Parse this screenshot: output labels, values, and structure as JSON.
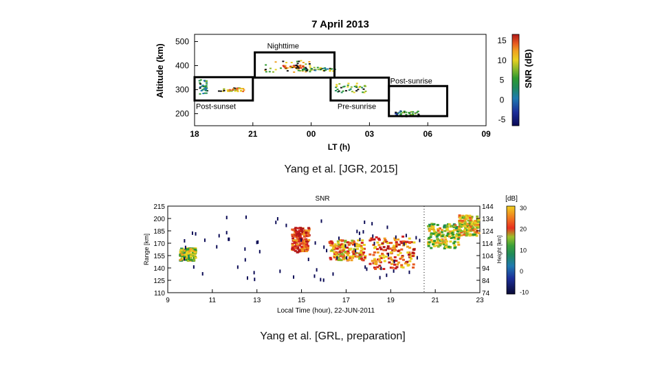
{
  "slide": {
    "caption_top": "Yang et al. [JGR, 2015]",
    "caption_bottom": "Yang et al. [GRL, preparation]"
  },
  "colors": {
    "scale": [
      "#0a0a55",
      "#1c2f9a",
      "#1f7ab0",
      "#1f8a5a",
      "#2e9a2e",
      "#8ab82a",
      "#e8d020",
      "#f0a020",
      "#e85a20",
      "#d02020",
      "#b01818"
    ]
  },
  "chart_data": [
    {
      "type": "scatter",
      "title": "7 April 2013",
      "xlabel": "LT (h)",
      "ylabel": "Altitude (km)",
      "xlim": [
        18,
        33
      ],
      "ylim": [
        150,
        530
      ],
      "x_ticks": [
        "18",
        "21",
        "00",
        "03",
        "06",
        "09"
      ],
      "y_ticks": [
        200,
        300,
        400,
        500
      ],
      "colorbar": {
        "label": "SNR (dB)",
        "ticks": [
          "15",
          "10",
          "5",
          "0",
          "-5"
        ],
        "range": [
          -5,
          15
        ]
      },
      "annotations": [
        {
          "label": "Nighttime",
          "x0": 21.1,
          "x1": 25.2,
          "y0": 350,
          "y1": 455
        },
        {
          "label": "Post-sunset",
          "x0": 18.0,
          "x1": 21.0,
          "y0": 255,
          "y1": 352
        },
        {
          "label": "Pre-sunrise",
          "x0": 25.0,
          "x1": 28.0,
          "y0": 255,
          "y1": 350
        },
        {
          "label": "Post-sunrise",
          "x0": 28.0,
          "x1": 31.0,
          "y0": 190,
          "y1": 315
        }
      ],
      "clusters": [
        {
          "x0": 18.2,
          "x1": 18.6,
          "y0": 285,
          "y1": 345,
          "snr": 2
        },
        {
          "x0": 19.2,
          "x1": 20.5,
          "y0": 295,
          "y1": 310,
          "snr": 8
        },
        {
          "x0": 21.5,
          "x1": 24.0,
          "y0": 375,
          "y1": 425,
          "snr": 6
        },
        {
          "x0": 22.5,
          "x1": 23.7,
          "y0": 390,
          "y1": 405,
          "snr": 10
        },
        {
          "x0": 23.5,
          "x1": 25.2,
          "y0": 380,
          "y1": 395,
          "snr": 3
        },
        {
          "x0": 25.2,
          "x1": 26.8,
          "y0": 290,
          "y1": 330,
          "snr": 4
        },
        {
          "x0": 28.3,
          "x1": 29.5,
          "y0": 190,
          "y1": 215,
          "snr": 1
        }
      ]
    },
    {
      "type": "heatmap",
      "title": "SNR",
      "units": "[dB]",
      "xlabel": "Local Time (hour), 22-JUN-2011",
      "ylabel": "Range [km]",
      "y2label": "Height [km]",
      "xlim": [
        9,
        23
      ],
      "ylim": [
        110,
        215
      ],
      "x_ticks": [
        "9",
        "11",
        "13",
        "15",
        "17",
        "19",
        "21",
        "23"
      ],
      "y_ticks": [
        "215",
        "200",
        "185",
        "170",
        "155",
        "140",
        "125",
        "110"
      ],
      "y2_ticks": [
        "144",
        "134",
        "124",
        "114",
        "104",
        "94",
        "84",
        "74"
      ],
      "colorbar": {
        "label": "[dB]",
        "ticks": [
          "30",
          "20",
          "10",
          "0",
          "-10"
        ],
        "range": [
          -10,
          30
        ]
      },
      "dotted_line_x": 20.5,
      "clusters": [
        {
          "x0": 9.5,
          "x1": 10.2,
          "y0": 150,
          "y1": 165,
          "snr": 10
        },
        {
          "x0": 14.5,
          "x1": 15.3,
          "y0": 160,
          "y1": 190,
          "snr": 25
        },
        {
          "x0": 16.2,
          "x1": 17.8,
          "y0": 150,
          "y1": 175,
          "snr": 18
        },
        {
          "x0": 18.0,
          "x1": 20.0,
          "y0": 140,
          "y1": 180,
          "snr": 22
        },
        {
          "x0": 20.6,
          "x1": 22.0,
          "y0": 165,
          "y1": 195,
          "snr": 12
        },
        {
          "x0": 22.0,
          "x1": 22.9,
          "y0": 180,
          "y1": 205,
          "snr": 14
        }
      ]
    }
  ]
}
